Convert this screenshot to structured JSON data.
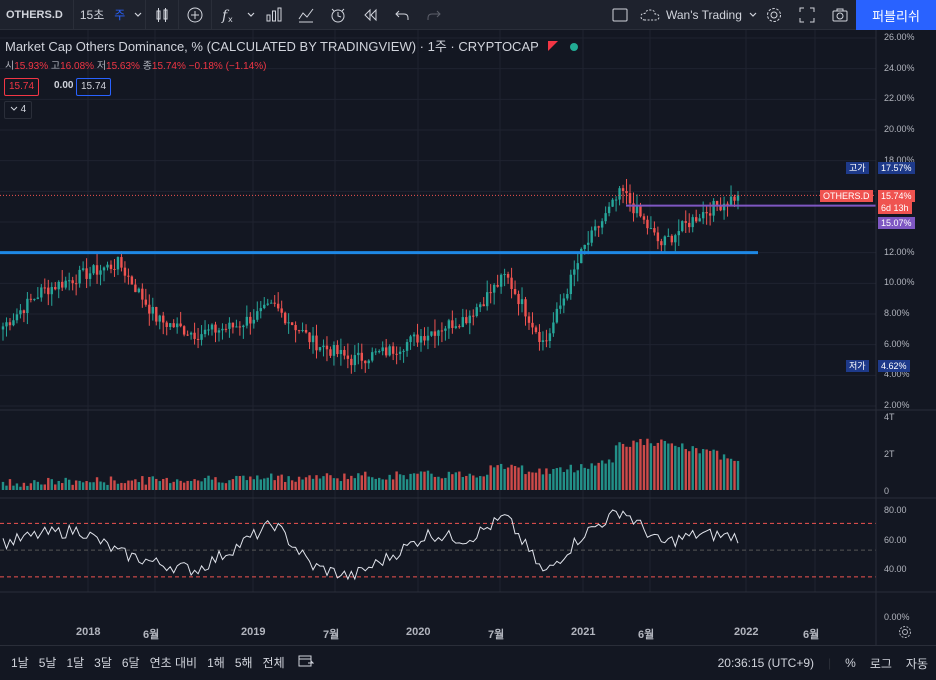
{
  "toolbar": {
    "symbol": "OTHERS.D",
    "interval": "15초",
    "interval_selected": "주",
    "layout_name": "Wan's Trading",
    "publish_label": "퍼블리쉬"
  },
  "legend": {
    "title": "Market Cap Others Dominance, %  (CALCULATED BY TRADINGVIEW) · 1주 · CRYPTOCAP",
    "ohlc_open_label": "시",
    "ohlc_open": "15.93%",
    "ohlc_high_label": "고",
    "ohlc_high": "16.08%",
    "ohlc_low_label": "저",
    "ohlc_low": "15.63%",
    "ohlc_close_label": "종",
    "ohlc_close": "15.74%",
    "change": "−0.18% (−1.14%)",
    "bid": "15.74",
    "spread": "0.00",
    "ask": "15.74",
    "indicator_count": "4"
  },
  "price_axis": {
    "ticks": [
      "26.00%",
      "24.00%",
      "22.00%",
      "20.00%",
      "18.00%",
      "12.00%",
      "10.00%",
      "8.00%",
      "6.00%",
      "4.00%",
      "2.00%"
    ],
    "high_label": "고가",
    "high_value": "17.57%",
    "low_label": "저가",
    "low_value": "4.62%",
    "symbol_tag": "OTHERS.D",
    "last_price": "15.74%",
    "countdown": "6d 13h",
    "line_price": "15.07%"
  },
  "volume_axis": {
    "ticks": [
      "4T",
      "2T",
      "0"
    ]
  },
  "rsi_axis": {
    "ticks": [
      "80.00",
      "60.00",
      "40.00",
      "0.00%"
    ]
  },
  "time_axis": {
    "labels": [
      "2018",
      "6월",
      "2019",
      "7월",
      "2020",
      "7월",
      "2021",
      "6월",
      "2022",
      "6월"
    ]
  },
  "bottom": {
    "ranges": [
      "1날",
      "5날",
      "1달",
      "3달",
      "6달",
      "연초 대비",
      "1해",
      "5해",
      "전체"
    ],
    "time": "20:36:15 (UTC+9)",
    "percent": "%",
    "log": "로그",
    "auto": "자동"
  },
  "colors": {
    "up": "#26a69a",
    "down": "#ef5350",
    "accent": "#2962ff",
    "purple": "#7e57c2",
    "horizontal": "#1e88e5"
  },
  "chart_data": {
    "type": "candlestick",
    "title": "Market Cap Others Dominance, %",
    "ylim": [
      2,
      26
    ],
    "x": [
      "2017-10",
      "2018-01",
      "2018-03",
      "2018-06",
      "2018-09",
      "2018-12",
      "2019-03",
      "2019-06",
      "2019-09",
      "2019-12",
      "2020-03",
      "2020-06",
      "2020-09",
      "2020-12",
      "2021-02",
      "2021-04",
      "2021-06",
      "2021-08",
      "2021-10",
      "2021-12"
    ],
    "close": [
      7.2,
      9.5,
      10.5,
      11.3,
      7.6,
      6.7,
      7.2,
      8.5,
      6.2,
      5.0,
      5.6,
      6.8,
      7.8,
      10.5,
      6.0,
      12.2,
      16.0,
      12.5,
      14.5,
      15.74
    ],
    "horizontal_lines": [
      12.0,
      15.07
    ],
    "rsi": [
      55,
      62,
      65,
      48,
      40,
      35,
      52,
      70,
      38,
      30,
      45,
      62,
      58,
      75,
      32,
      62,
      80,
      55,
      62,
      60
    ],
    "rsi_levels": [
      70,
      50,
      30
    ]
  }
}
